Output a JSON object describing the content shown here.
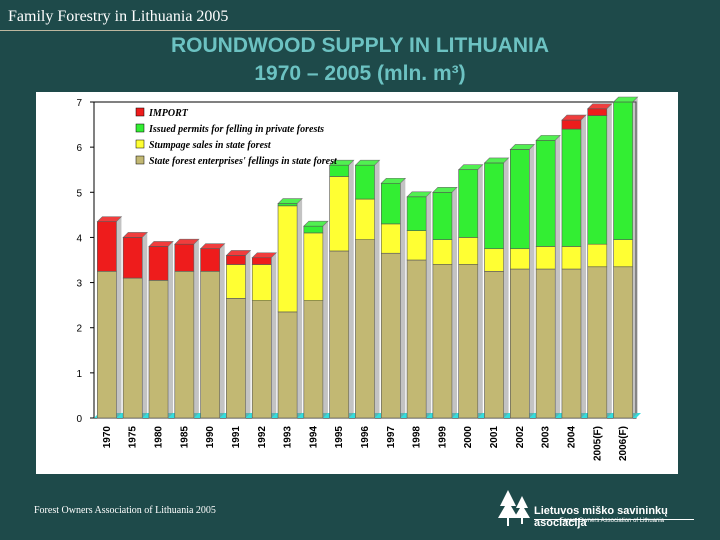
{
  "header": {
    "top_text": "Family Forestry in Lithuania 2005"
  },
  "title": {
    "line1": "ROUNDWOOD SUPPLY IN LITHUANIA",
    "line2": "1970 – 2005 (mln. m³)"
  },
  "footer": {
    "text": "Forest Owners Association of Lithuania 2005"
  },
  "logo": {
    "name": "Lietuvos miško savininkų asociacija",
    "sub": "Forest Owners Association of Lithuania"
  },
  "colors": {
    "state": "#c2b873",
    "stumpage": "#ffff33",
    "permits": "#33ee33",
    "import": "#ee1c1c",
    "base": "#33dddd"
  },
  "chart_data": {
    "type": "bar",
    "stacked": true,
    "categories": [
      "1970",
      "1975",
      "1980",
      "1985",
      "1990",
      "1991",
      "1992",
      "1993",
      "1994",
      "1995",
      "1996",
      "1997",
      "1998",
      "1999",
      "2000",
      "2001",
      "2002",
      "2003",
      "2004",
      "2005(F)",
      "2006(F)"
    ],
    "series": [
      {
        "name": "State forest enterprises' fellings in state forest",
        "values": [
          3.25,
          3.1,
          3.05,
          3.25,
          3.25,
          2.65,
          2.6,
          2.35,
          2.6,
          3.7,
          3.95,
          3.65,
          3.5,
          3.4,
          3.4,
          3.25,
          3.3,
          3.3,
          3.3,
          3.35,
          3.35
        ]
      },
      {
        "name": "Stumpage sales in state forest",
        "values": [
          0,
          0,
          0,
          0,
          0,
          0.75,
          0.8,
          2.35,
          1.5,
          1.65,
          0.9,
          0.65,
          0.65,
          0.55,
          0.6,
          0.5,
          0.45,
          0.5,
          0.5,
          0.5,
          0.6
        ]
      },
      {
        "name": "Issued permits for felling in private forests",
        "values": [
          0,
          0,
          0,
          0,
          0,
          0,
          0,
          0.05,
          0.15,
          0.25,
          0.75,
          0.9,
          0.75,
          1.05,
          1.5,
          1.9,
          2.2,
          2.35,
          2.6,
          2.85,
          3.05
        ]
      },
      {
        "name": "IMPORT",
        "values": [
          1.1,
          0.9,
          0.75,
          0.6,
          0.5,
          0.2,
          0.15,
          0,
          0,
          0,
          0,
          0,
          0,
          0,
          0,
          0,
          0,
          0,
          0.2,
          0.15,
          0
        ]
      }
    ],
    "legend": [
      "IMPORT",
      "Issued permits for felling in private forests",
      "Stumpage sales in state forest",
      "State forest enterprises' fellings in state forest"
    ],
    "legend_position": "top-left",
    "y_ticks": [
      "0",
      "1",
      "2",
      "3",
      "4",
      "5",
      "6",
      "7"
    ],
    "ylim": [
      0,
      7
    ],
    "grid": false
  }
}
